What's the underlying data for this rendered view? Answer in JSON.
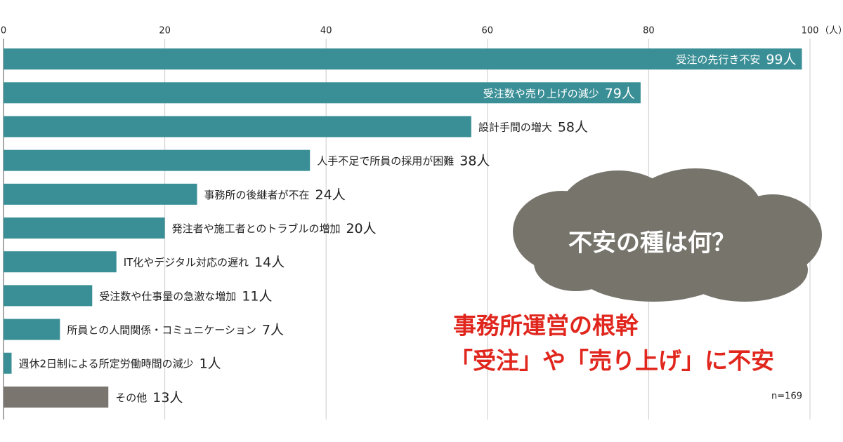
{
  "chart_data": {
    "type": "hbar",
    "categories": [
      "受注の先行き不安",
      "受注数や売り上げの減少",
      "設計手間の増大",
      "人手不足で所員の採用が困難",
      "事務所の後継者が不在",
      "発注者や施工者とのトラブルの増加",
      "IT化やデジタル対応の遅れ",
      "受注数や仕事量の急激な増加",
      "所員との人間関係・コミュニケーション",
      "週休2日制による所定労働時間の減少",
      "その他"
    ],
    "values": [
      99,
      79,
      58,
      38,
      24,
      20,
      14,
      11,
      7,
      1,
      13
    ],
    "value_labels": [
      "99人",
      "79人",
      "58人",
      "38人",
      "24人",
      "20人",
      "14人",
      "11人",
      "7人",
      "1人",
      "13人"
    ],
    "colors": [
      "#3a8f96",
      "#3a8f96",
      "#3a8f96",
      "#3a8f96",
      "#3a8f96",
      "#3a8f96",
      "#3a8f96",
      "#3a8f96",
      "#3a8f96",
      "#3a8f96",
      "#7a766f"
    ],
    "xlim": [
      0,
      100
    ],
    "xticks": [
      0,
      20,
      40,
      60,
      80,
      100
    ],
    "x_unit": "（人）",
    "grid": true,
    "note": "n=169",
    "cloud_text": "不安の種は何？",
    "headline": [
      "事務所運営の根幹",
      "「受注」や「売り上げ」に不安"
    ]
  }
}
